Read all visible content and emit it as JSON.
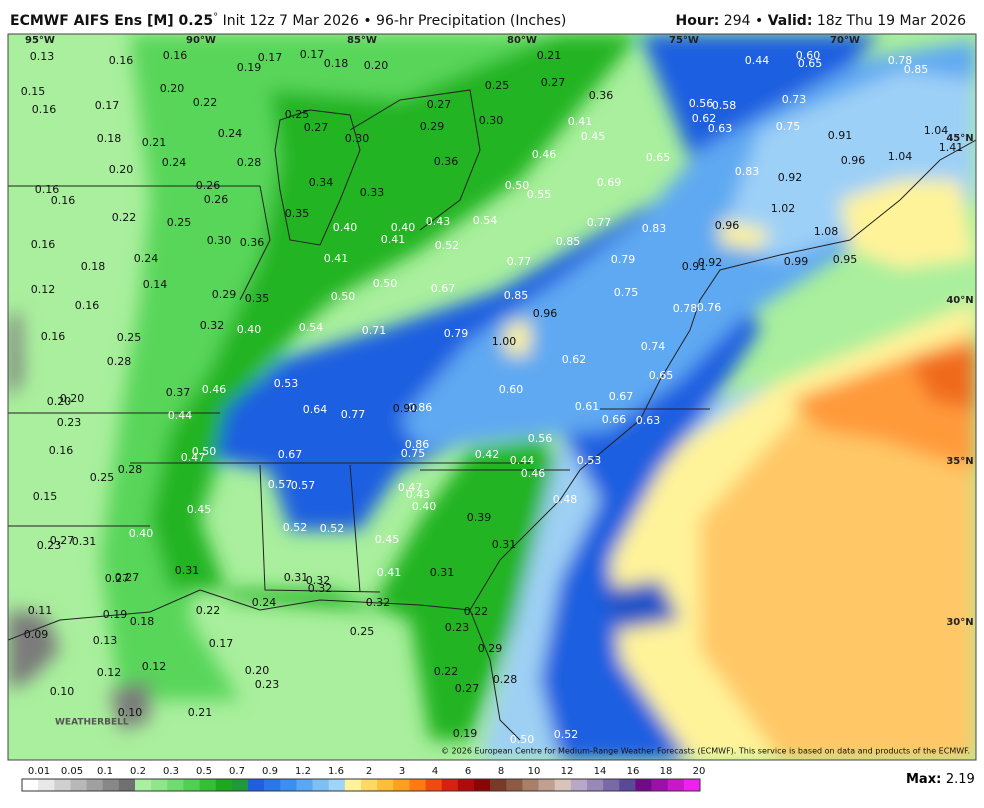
{
  "header": {
    "model": "ECMWF AIFS Ens [M] 0.25",
    "degree": "°",
    "init": "Init 12z 7 Mar 2026",
    "bullet": "•",
    "product": "96-hr Precipitation (Inches)",
    "hour_label": "Hour:",
    "hour": "294",
    "valid_label": "Valid:",
    "valid": "18z Thu 19 Mar 2026"
  },
  "grid_labels": {
    "lon": [
      "95°W",
      "90°W",
      "85°W",
      "80°W",
      "75°W",
      "70°W"
    ],
    "lat": [
      "45°N",
      "40°N",
      "35°N",
      "30°N"
    ]
  },
  "map": {
    "values": [
      "0.13",
      "0.16",
      "0.16",
      "0.17",
      "0.19",
      "0.17",
      "0.18",
      "0.20",
      "0.21",
      "0.25",
      "0.27",
      "0.36",
      "0.44",
      "0.60",
      "0.65",
      "0.78",
      "0.85",
      "0.15",
      "0.16",
      "0.20",
      "0.22",
      "0.17",
      "0.73",
      "0.27",
      "0.25",
      "0.27",
      "0.29",
      "0.30",
      "0.41",
      "0.45",
      "0.56",
      "0.58",
      "0.62",
      "0.63",
      "0.75",
      "0.91",
      "1.04",
      "1.41",
      "0.18",
      "0.21",
      "0.24",
      "0.30",
      "0.46",
      "0.65",
      "0.96",
      "1.04",
      "0.20",
      "0.24",
      "0.28",
      "0.36",
      "0.34",
      "0.33",
      "0.50",
      "0.55",
      "0.69",
      "0.83",
      "0.92",
      "0.16",
      "0.16",
      "0.26",
      "0.26",
      "0.35",
      "0.40",
      "0.40",
      "0.43",
      "0.54",
      "0.77",
      "0.83",
      "1.02",
      "0.96",
      "0.22",
      "0.25",
      "0.30",
      "0.36",
      "0.41",
      "0.52",
      "0.85",
      "1.08",
      "0.16",
      "0.24",
      "0.41",
      "0.77",
      "0.79",
      "0.91",
      "0.92",
      "0.99",
      "0.95",
      "0.18",
      "0.12",
      "0.14",
      "0.29",
      "0.35",
      "0.50",
      "0.50",
      "0.67",
      "0.85",
      "0.75",
      "0.78",
      "0.76",
      "0.16",
      "0.16",
      "0.32",
      "0.40",
      "0.54",
      "0.71",
      "0.96",
      "0.79",
      "1.00",
      "0.25",
      "0.28",
      "0.62",
      "0.74",
      "0.53",
      "0.46",
      "0.37",
      "0.60",
      "0.67",
      "0.65",
      "0.20",
      "0.20",
      "0.64",
      "0.77",
      "0.86",
      "0.90",
      "0.61",
      "0.44",
      "0.23",
      "0.66",
      "0.63",
      "0.86",
      "0.75",
      "0.56",
      "0.16",
      "0.50",
      "0.47",
      "0.67",
      "0.42",
      "0.44",
      "0.53",
      "0.28",
      "0.25",
      "0.46",
      "0.57",
      "0.57",
      "0.47",
      "0.43",
      "0.48",
      "0.15",
      "0.40",
      "0.45",
      "0.39",
      "0.52",
      "0.52",
      "0.40",
      "0.45",
      "0.27",
      "0.31",
      "0.23",
      "0.31",
      "0.31",
      "0.41",
      "0.31",
      "0.31",
      "0.32",
      "0.32",
      "0.27",
      "0.27",
      "0.24",
      "0.32",
      "0.22",
      "0.22",
      "0.11",
      "0.19",
      "0.18",
      "0.23",
      "0.25",
      "0.09",
      "0.13",
      "0.17",
      "0.29",
      "0.12",
      "0.12",
      "0.20",
      "0.22",
      "0.23",
      "0.28",
      "0.27",
      "0.10",
      "0.10",
      "0.21",
      "0.19",
      "0.50",
      "0.52"
    ]
  },
  "logo": "WEATHERBELL",
  "copyright": "© 2026 European Centre for Medium-Range Weather Forecasts (ECMWF). This service is based on data and products of the ECMWF.",
  "colorbar": {
    "labels": [
      "0.01",
      "0.05",
      "0.1",
      "0.2",
      "0.3",
      "0.5",
      "0.7",
      "0.9",
      "1.2",
      "1.6",
      "2",
      "3",
      "4",
      "6",
      "8",
      "10",
      "12",
      "14",
      "16",
      "18",
      "20"
    ]
  },
  "max": {
    "label": "Max:",
    "value": "2.19"
  }
}
